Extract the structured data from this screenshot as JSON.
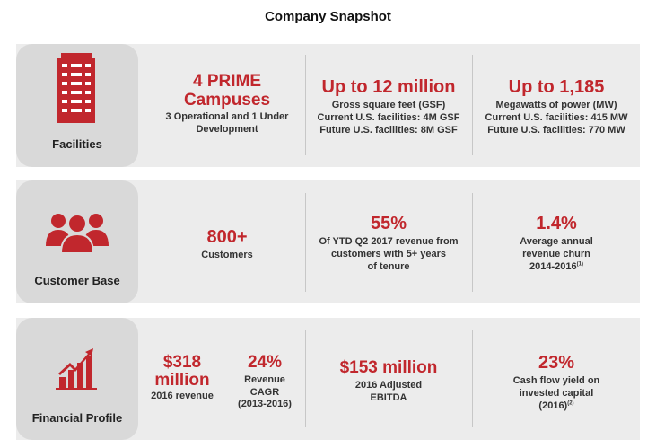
{
  "title": "Company Snapshot",
  "colors": {
    "accent": "#c1272d",
    "band": "#ececec",
    "card": "#d9d9d9"
  },
  "rows": [
    {
      "label": "Facilities",
      "icon": "building-icon",
      "cells": [
        {
          "headline_1": "4 PRIME",
          "headline_2": "Campuses",
          "text_1": "3 Operational and 1 Under",
          "text_2": "Development"
        },
        {
          "headline": "Up to 12 million",
          "text_1": "Gross square feet (GSF)",
          "text_2": "Current U.S. facilities: 4M GSF",
          "text_3": "Future U.S. facilities: 8M GSF"
        },
        {
          "headline": "Up to 1,185",
          "text_1": "Megawatts of power (MW)",
          "text_2": "Current U.S. facilities: 415 MW",
          "text_3": "Future U.S. facilities: 770 MW"
        }
      ]
    },
    {
      "label": "Customer Base",
      "icon": "people-group-icon",
      "cells": [
        {
          "headline": "800+",
          "text_1": "Customers"
        },
        {
          "headline": "55%",
          "text_1": "Of YTD Q2 2017 revenue from",
          "text_2": "customers with 5+ years",
          "text_3": "of tenure"
        },
        {
          "headline": "1.4%",
          "text_1": "Average annual",
          "text_2": "revenue churn",
          "text_3": "2014-2016",
          "footnote": "(1)"
        }
      ]
    },
    {
      "label": "Financial Profile",
      "icon": "bar-chart-growth-icon",
      "cells": [
        {
          "headline_1": "$318",
          "headline_2": "million",
          "text_1": "2016 revenue"
        },
        {
          "headline": "24%",
          "text_1": "Revenue",
          "text_2": "CAGR",
          "text_3": "(2013-2016)"
        },
        {
          "headline": "$153 million",
          "text_1": "2016 Adjusted",
          "text_2": "EBITDA"
        },
        {
          "headline": "23%",
          "text_1": "Cash flow yield on",
          "text_2": "invested capital",
          "text_3": "(2016)",
          "footnote": "(2)"
        }
      ]
    }
  ]
}
